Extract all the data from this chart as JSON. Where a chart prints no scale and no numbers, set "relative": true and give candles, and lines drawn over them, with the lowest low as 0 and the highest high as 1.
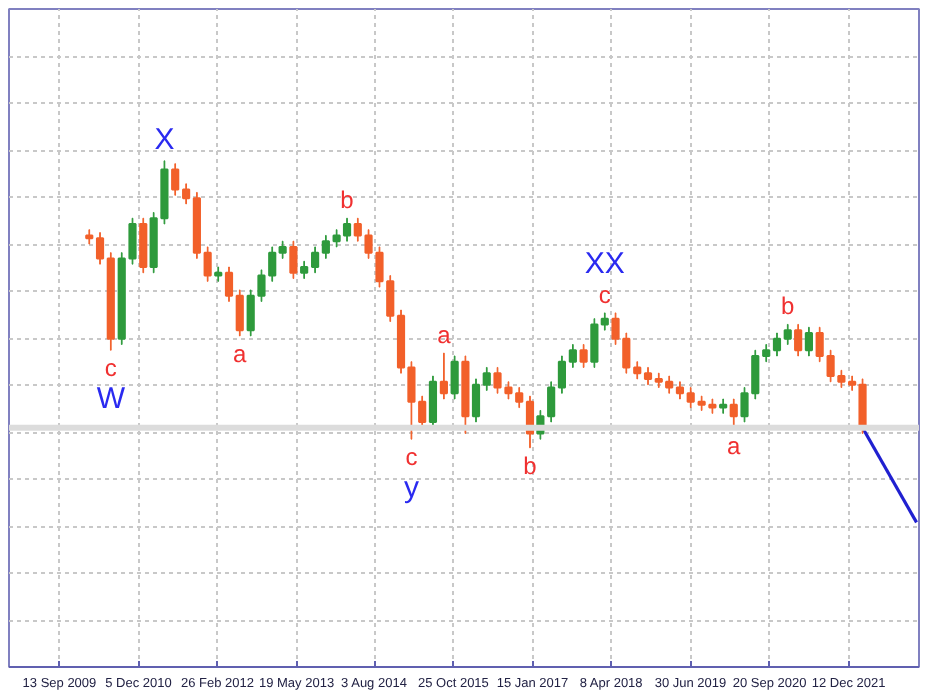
{
  "chart_data": {
    "type": "candlestick",
    "relative": true,
    "x": [
      "2010-03",
      "2010-05",
      "2010-07",
      "2010-09",
      "2010-11",
      "2011-01",
      "2011-03",
      "2011-05",
      "2011-07",
      "2011-09",
      "2011-11",
      "2012-01",
      "2012-03",
      "2012-05",
      "2012-07",
      "2012-09",
      "2012-11",
      "2013-01",
      "2013-03",
      "2013-05",
      "2013-07",
      "2013-09",
      "2013-11",
      "2014-01",
      "2014-03",
      "2014-05",
      "2014-07",
      "2014-09",
      "2014-11",
      "2015-01",
      "2015-03",
      "2015-05",
      "2015-07",
      "2015-09",
      "2015-11",
      "2016-01",
      "2016-03",
      "2016-05",
      "2016-07",
      "2016-09",
      "2016-11",
      "2017-01",
      "2017-03",
      "2017-05",
      "2017-07",
      "2017-09",
      "2017-11",
      "2018-01",
      "2018-03",
      "2018-05",
      "2018-07",
      "2018-09",
      "2018-11",
      "2019-01",
      "2019-03",
      "2019-05",
      "2019-07",
      "2019-09",
      "2019-11",
      "2020-01",
      "2020-03",
      "2020-05",
      "2020-07",
      "2020-09",
      "2020-11",
      "2021-01",
      "2021-03",
      "2021-05",
      "2021-07",
      "2021-09",
      "2021-11",
      "2022-01",
      "2022-03"
    ],
    "ohlc": [
      [
        0.74,
        0.76,
        0.71,
        0.73
      ],
      [
        0.73,
        0.75,
        0.64,
        0.66
      ],
      [
        0.66,
        0.68,
        0.34,
        0.38
      ],
      [
        0.38,
        0.68,
        0.36,
        0.66
      ],
      [
        0.66,
        0.8,
        0.64,
        0.78
      ],
      [
        0.78,
        0.8,
        0.61,
        0.63
      ],
      [
        0.63,
        0.82,
        0.61,
        0.8
      ],
      [
        0.8,
        1.0,
        0.78,
        0.97
      ],
      [
        0.97,
        0.99,
        0.88,
        0.9
      ],
      [
        0.9,
        0.92,
        0.85,
        0.87
      ],
      [
        0.87,
        0.89,
        0.66,
        0.68
      ],
      [
        0.68,
        0.7,
        0.58,
        0.6
      ],
      [
        0.6,
        0.63,
        0.58,
        0.61
      ],
      [
        0.61,
        0.63,
        0.51,
        0.53
      ],
      [
        0.53,
        0.55,
        0.39,
        0.41
      ],
      [
        0.41,
        0.55,
        0.39,
        0.53
      ],
      [
        0.53,
        0.62,
        0.51,
        0.6
      ],
      [
        0.6,
        0.7,
        0.58,
        0.68
      ],
      [
        0.68,
        0.72,
        0.66,
        0.7
      ],
      [
        0.7,
        0.72,
        0.59,
        0.61
      ],
      [
        0.61,
        0.65,
        0.59,
        0.63
      ],
      [
        0.63,
        0.7,
        0.61,
        0.68
      ],
      [
        0.68,
        0.74,
        0.66,
        0.72
      ],
      [
        0.72,
        0.76,
        0.7,
        0.74
      ],
      [
        0.74,
        0.8,
        0.72,
        0.78
      ],
      [
        0.78,
        0.8,
        0.72,
        0.74
      ],
      [
        0.74,
        0.76,
        0.66,
        0.68
      ],
      [
        0.68,
        0.7,
        0.56,
        0.58
      ],
      [
        0.58,
        0.6,
        0.44,
        0.46
      ],
      [
        0.46,
        0.48,
        0.26,
        0.28
      ],
      [
        0.28,
        0.3,
        0.03,
        0.16
      ],
      [
        0.16,
        0.18,
        0.07,
        0.09
      ],
      [
        0.09,
        0.25,
        0.07,
        0.23
      ],
      [
        0.23,
        0.33,
        0.17,
        0.19
      ],
      [
        0.19,
        0.32,
        0.17,
        0.3
      ],
      [
        0.3,
        0.32,
        0.05,
        0.11
      ],
      [
        0.11,
        0.24,
        0.09,
        0.22
      ],
      [
        0.22,
        0.28,
        0.2,
        0.26
      ],
      [
        0.26,
        0.28,
        0.19,
        0.21
      ],
      [
        0.21,
        0.23,
        0.17,
        0.19
      ],
      [
        0.19,
        0.21,
        0.14,
        0.16
      ],
      [
        0.16,
        0.18,
        0.0,
        0.05
      ],
      [
        0.05,
        0.13,
        0.03,
        0.11
      ],
      [
        0.11,
        0.23,
        0.09,
        0.21
      ],
      [
        0.21,
        0.32,
        0.19,
        0.3
      ],
      [
        0.3,
        0.36,
        0.28,
        0.34
      ],
      [
        0.34,
        0.36,
        0.28,
        0.3
      ],
      [
        0.3,
        0.45,
        0.28,
        0.43
      ],
      [
        0.43,
        0.47,
        0.41,
        0.45
      ],
      [
        0.45,
        0.47,
        0.36,
        0.38
      ],
      [
        0.38,
        0.4,
        0.26,
        0.28
      ],
      [
        0.28,
        0.3,
        0.24,
        0.26
      ],
      [
        0.26,
        0.28,
        0.22,
        0.24
      ],
      [
        0.24,
        0.26,
        0.21,
        0.23
      ],
      [
        0.23,
        0.25,
        0.19,
        0.21
      ],
      [
        0.21,
        0.23,
        0.17,
        0.19
      ],
      [
        0.19,
        0.21,
        0.14,
        0.16
      ],
      [
        0.16,
        0.18,
        0.13,
        0.15
      ],
      [
        0.15,
        0.17,
        0.12,
        0.14
      ],
      [
        0.14,
        0.17,
        0.12,
        0.15
      ],
      [
        0.15,
        0.17,
        0.07,
        0.11
      ],
      [
        0.11,
        0.21,
        0.09,
        0.19
      ],
      [
        0.19,
        0.34,
        0.17,
        0.32
      ],
      [
        0.32,
        0.36,
        0.3,
        0.34
      ],
      [
        0.34,
        0.4,
        0.32,
        0.38
      ],
      [
        0.38,
        0.43,
        0.36,
        0.41
      ],
      [
        0.41,
        0.43,
        0.32,
        0.34
      ],
      [
        0.34,
        0.42,
        0.32,
        0.4
      ],
      [
        0.4,
        0.42,
        0.3,
        0.32
      ],
      [
        0.32,
        0.34,
        0.23,
        0.25
      ],
      [
        0.25,
        0.27,
        0.21,
        0.23
      ],
      [
        0.23,
        0.25,
        0.2,
        0.22
      ],
      [
        0.22,
        0.24,
        0.05,
        0.07
      ]
    ],
    "series": [
      {
        "type": "line",
        "color": "#2020d0",
        "x": [
          "2022-03",
          "2023-01"
        ],
        "values": [
          0.07,
          -0.26
        ]
      }
    ],
    "xlim": [
      "2008-12-01",
      "2023-01-15"
    ],
    "xticks": [
      {
        "value": "2009-09-13",
        "label": "13 Sep 2009"
      },
      {
        "value": "2010-12-05",
        "label": "5 Dec 2010"
      },
      {
        "value": "2012-02-26",
        "label": "26 Feb 2012"
      },
      {
        "value": "2013-05-19",
        "label": "19 May 2013"
      },
      {
        "value": "2014-08-03",
        "label": "3 Aug 2014"
      },
      {
        "value": "2015-10-25",
        "label": "25 Oct 2015"
      },
      {
        "value": "2017-01-15",
        "label": "15 Jan 2017"
      },
      {
        "value": "2018-04-08",
        "label": "8 Apr 2018"
      },
      {
        "value": "2019-06-30",
        "label": "30 Jun 2019"
      },
      {
        "value": "2020-09-20",
        "label": "20 Sep 2020"
      },
      {
        "value": "2021-12-12",
        "label": "12 Dec 2021"
      }
    ],
    "ref_lines": [
      {
        "axis": "y",
        "value": 0.07,
        "color": "#dcdcdc"
      }
    ],
    "grid": true,
    "annotations": [
      {
        "text": "c",
        "x": "2010-07",
        "y": 0.34
      },
      {
        "text": "W",
        "x": "2010-07",
        "y": 0.34
      },
      {
        "text": "X",
        "x": "2011-05",
        "y": 1.0
      },
      {
        "text": "a",
        "x": "2012-07",
        "y": 0.39
      },
      {
        "text": "b",
        "x": "2014-03",
        "y": 0.8
      },
      {
        "text": "c",
        "x": "2015-03",
        "y": 0.03
      },
      {
        "text": "y",
        "x": "2015-03",
        "y": 0.03
      },
      {
        "text": "a",
        "x": "2015-09",
        "y": 0.33
      },
      {
        "text": "b",
        "x": "2017-01",
        "y": 0.0
      },
      {
        "text": "c",
        "x": "2018-03",
        "y": 0.47
      },
      {
        "text": "XX",
        "x": "2018-03",
        "y": 0.47
      },
      {
        "text": "a",
        "x": "2020-03",
        "y": 0.07
      },
      {
        "text": "b",
        "x": "2021-01",
        "y": 0.43
      }
    ]
  }
}
